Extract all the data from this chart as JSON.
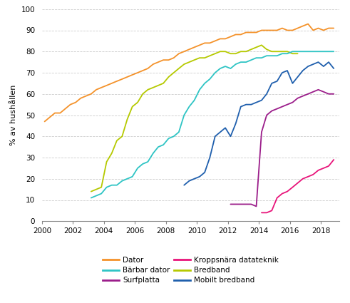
{
  "title": "",
  "ylabel": "% av hushållen",
  "xlim": [
    2000,
    2019.2
  ],
  "ylim": [
    0,
    100
  ],
  "xticks": [
    2000,
    2002,
    2004,
    2006,
    2008,
    2010,
    2012,
    2014,
    2016,
    2018
  ],
  "yticks": [
    0,
    10,
    20,
    30,
    40,
    50,
    60,
    70,
    80,
    90,
    100
  ],
  "series": {
    "Dator": {
      "color": "#F4922A",
      "x": [
        2000.17,
        2000.5,
        2000.83,
        2001.17,
        2001.5,
        2001.83,
        2002.17,
        2002.5,
        2002.83,
        2003.17,
        2003.5,
        2003.83,
        2004.17,
        2004.5,
        2004.83,
        2005.17,
        2005.5,
        2005.83,
        2006.17,
        2006.5,
        2006.83,
        2007.17,
        2007.5,
        2007.83,
        2008.17,
        2008.5,
        2008.83,
        2009.17,
        2009.5,
        2009.83,
        2010.17,
        2010.5,
        2010.83,
        2011.17,
        2011.5,
        2011.83,
        2012.17,
        2012.5,
        2012.83,
        2013.17,
        2013.5,
        2013.83,
        2014.17,
        2014.5,
        2014.83,
        2015.17,
        2015.5,
        2015.83,
        2016.17,
        2016.5,
        2016.83,
        2017.17,
        2017.5,
        2017.83,
        2018.17,
        2018.5,
        2018.83
      ],
      "y": [
        47,
        49,
        51,
        51,
        53,
        55,
        56,
        58,
        59,
        60,
        62,
        63,
        64,
        65,
        66,
        67,
        68,
        69,
        70,
        71,
        72,
        74,
        75,
        76,
        76,
        77,
        79,
        80,
        81,
        82,
        83,
        84,
        84,
        85,
        86,
        86,
        87,
        88,
        88,
        89,
        89,
        89,
        90,
        90,
        90,
        90,
        91,
        90,
        90,
        91,
        92,
        93,
        90,
        91,
        90,
        91,
        91
      ]
    },
    "Bärbar dator": {
      "color": "#2EC4C4",
      "x": [
        2003.17,
        2003.5,
        2003.83,
        2004.17,
        2004.5,
        2004.83,
        2005.17,
        2005.5,
        2005.83,
        2006.17,
        2006.5,
        2006.83,
        2007.17,
        2007.5,
        2007.83,
        2008.17,
        2008.5,
        2008.83,
        2009.17,
        2009.5,
        2009.83,
        2010.17,
        2010.5,
        2010.83,
        2011.17,
        2011.5,
        2011.83,
        2012.17,
        2012.5,
        2012.83,
        2013.17,
        2013.5,
        2013.83,
        2014.17,
        2014.5,
        2014.83,
        2015.17,
        2015.5,
        2015.83,
        2016.17,
        2016.5,
        2016.83,
        2017.17,
        2017.5,
        2017.83,
        2018.17,
        2018.5,
        2018.83
      ],
      "y": [
        11,
        12,
        13,
        16,
        17,
        17,
        19,
        20,
        21,
        25,
        27,
        28,
        32,
        35,
        36,
        39,
        40,
        42,
        50,
        54,
        57,
        62,
        65,
        67,
        70,
        72,
        73,
        72,
        74,
        75,
        75,
        76,
        77,
        77,
        78,
        78,
        78,
        79,
        79,
        80,
        80,
        80,
        80,
        80,
        80,
        80,
        80,
        80
      ]
    },
    "Surfplatta": {
      "color": "#9B1D8A",
      "x": [
        2012.17,
        2012.5,
        2012.83,
        2013.17,
        2013.5,
        2013.83,
        2014.17,
        2014.5,
        2014.83,
        2015.17,
        2015.5,
        2015.83,
        2016.17,
        2016.5,
        2016.83,
        2017.17,
        2017.5,
        2017.83,
        2018.17,
        2018.5,
        2018.83
      ],
      "y": [
        8,
        8,
        8,
        8,
        8,
        7,
        42,
        50,
        52,
        53,
        54,
        55,
        56,
        58,
        59,
        60,
        61,
        62,
        61,
        60,
        60
      ]
    },
    "Kroppsnära datateknik": {
      "color": "#E8147A",
      "x": [
        2014.17,
        2014.5,
        2014.83,
        2015.17,
        2015.5,
        2015.83,
        2016.17,
        2016.5,
        2016.83,
        2017.17,
        2017.5,
        2017.83,
        2018.17,
        2018.5,
        2018.83
      ],
      "y": [
        4,
        4,
        5,
        11,
        13,
        14,
        16,
        18,
        20,
        21,
        22,
        24,
        25,
        26,
        29
      ]
    },
    "Bredband": {
      "color": "#B5C900",
      "x": [
        2003.17,
        2003.5,
        2003.83,
        2004.17,
        2004.5,
        2004.83,
        2005.17,
        2005.5,
        2005.83,
        2006.17,
        2006.5,
        2006.83,
        2007.17,
        2007.5,
        2007.83,
        2008.17,
        2008.5,
        2008.83,
        2009.17,
        2009.5,
        2009.83,
        2010.17,
        2010.5,
        2010.83,
        2011.17,
        2011.5,
        2011.83,
        2012.17,
        2012.5,
        2012.83,
        2013.17,
        2013.5,
        2013.83,
        2014.17,
        2014.5,
        2014.83,
        2015.17,
        2015.5,
        2015.83,
        2016.17,
        2016.5
      ],
      "y": [
        14,
        15,
        16,
        28,
        32,
        38,
        40,
        48,
        54,
        56,
        60,
        62,
        63,
        64,
        65,
        68,
        70,
        72,
        74,
        75,
        76,
        77,
        77,
        78,
        79,
        80,
        80,
        79,
        79,
        80,
        80,
        81,
        82,
        83,
        81,
        80,
        80,
        80,
        80,
        79,
        79
      ]
    },
    "Mobilt bredband": {
      "color": "#1F5FAD",
      "x": [
        2009.17,
        2009.5,
        2009.83,
        2010.17,
        2010.5,
        2010.83,
        2011.17,
        2011.5,
        2011.83,
        2012.17,
        2012.5,
        2012.83,
        2013.17,
        2013.5,
        2013.83,
        2014.17,
        2014.5,
        2014.83,
        2015.17,
        2015.5,
        2015.83,
        2016.17,
        2016.5,
        2016.83,
        2017.17,
        2017.5,
        2017.83,
        2018.17,
        2018.5,
        2018.83
      ],
      "y": [
        17,
        19,
        20,
        21,
        23,
        30,
        40,
        42,
        44,
        40,
        46,
        54,
        55,
        55,
        56,
        57,
        60,
        65,
        66,
        70,
        71,
        65,
        68,
        71,
        73,
        74,
        75,
        73,
        75,
        72
      ]
    }
  },
  "legend_col1": [
    "Dator",
    "Surfplatta",
    "Bredband"
  ],
  "legend_col2": [
    "Bärbar dator",
    "Kroppsnära datateknik",
    "Mobilt bredband"
  ],
  "background_color": "#ffffff",
  "grid_color": "#cccccc"
}
